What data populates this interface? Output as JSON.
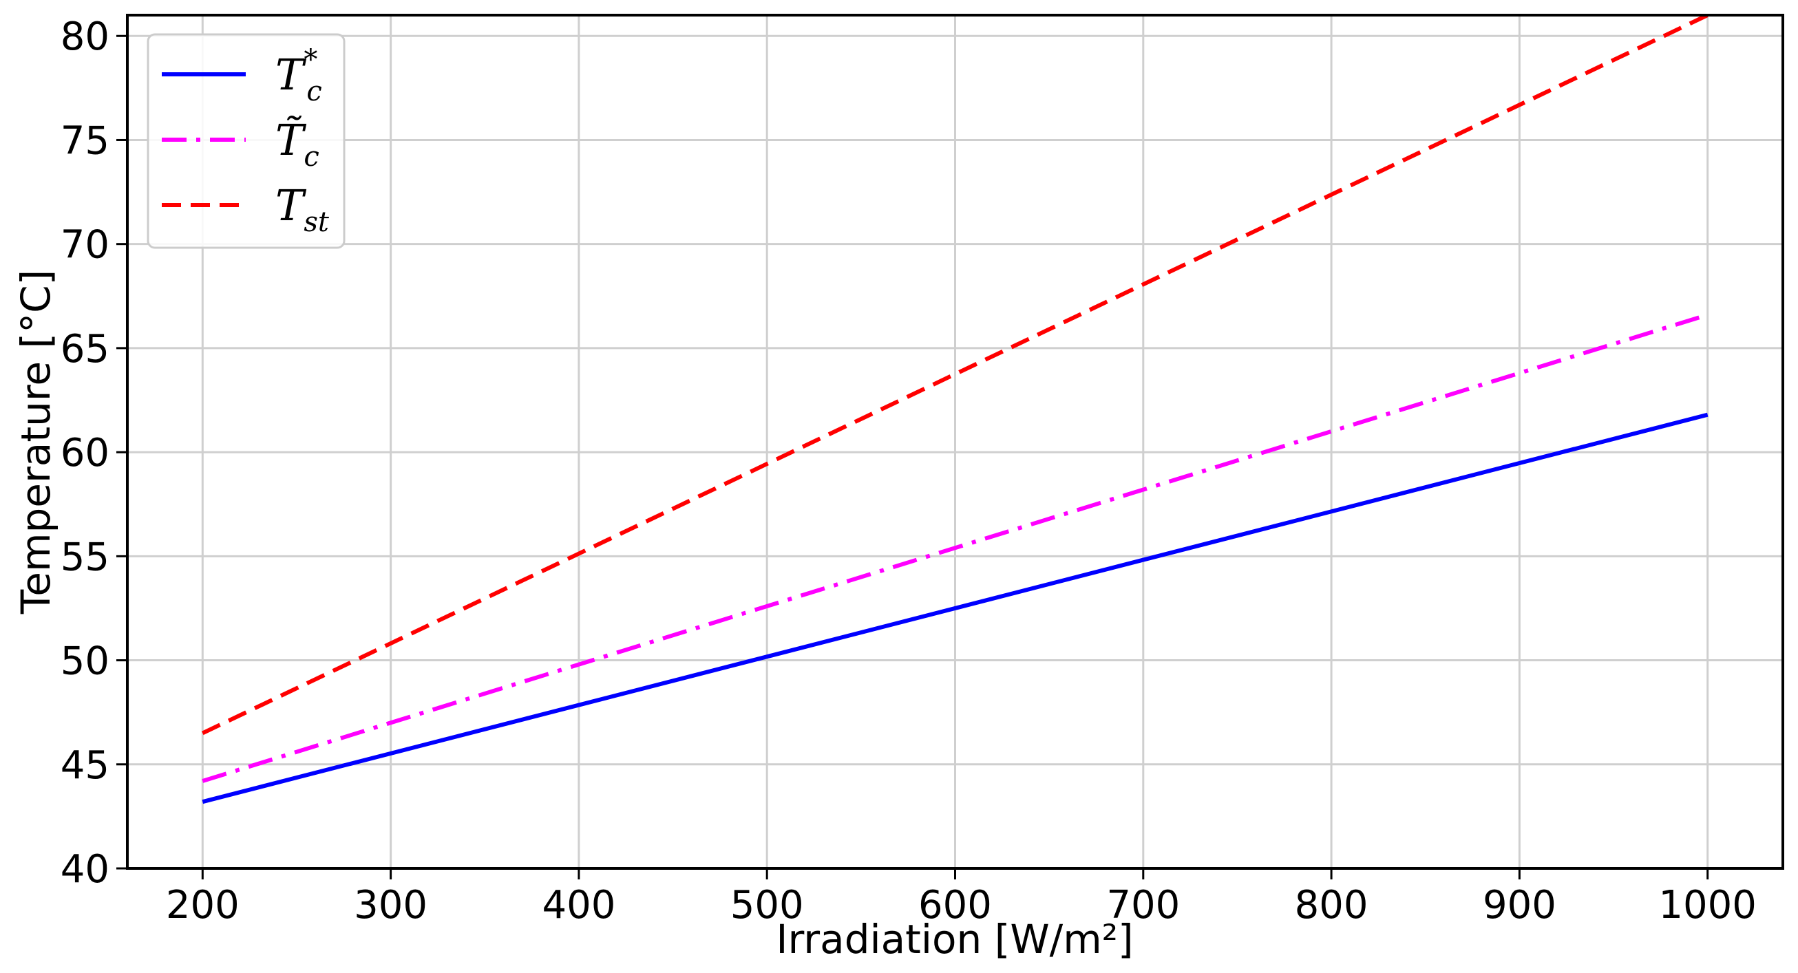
{
  "chart_data": {
    "type": "line",
    "title": "",
    "xlabel": "Irradiation [W/m²]",
    "ylabel": "Temperature [°C]",
    "xlim": [
      160,
      1040
    ],
    "ylim": [
      40,
      81
    ],
    "xticks": [
      200,
      300,
      400,
      500,
      600,
      700,
      800,
      900,
      1000
    ],
    "yticks": [
      40,
      45,
      50,
      55,
      60,
      65,
      70,
      75,
      80
    ],
    "grid": true,
    "legend_position": "top-left",
    "x": [
      200,
      1000
    ],
    "series": [
      {
        "name": "T_c*",
        "legend_main": "T",
        "legend_sub": "c",
        "legend_sup": "*",
        "color": "#0000ff",
        "style": "solid",
        "values": [
          43.2,
          61.8
        ]
      },
      {
        "name": "T̃_c",
        "legend_main": "T̃",
        "legend_sub": "c",
        "legend_sup": "",
        "color": "#ff00ff",
        "style": "dashdot",
        "values": [
          44.2,
          66.6
        ]
      },
      {
        "name": "T_st",
        "legend_main": "T",
        "legend_sub": "st",
        "legend_sup": "",
        "color": "#ff0000",
        "style": "dashed",
        "values": [
          46.5,
          81.0
        ]
      }
    ]
  }
}
